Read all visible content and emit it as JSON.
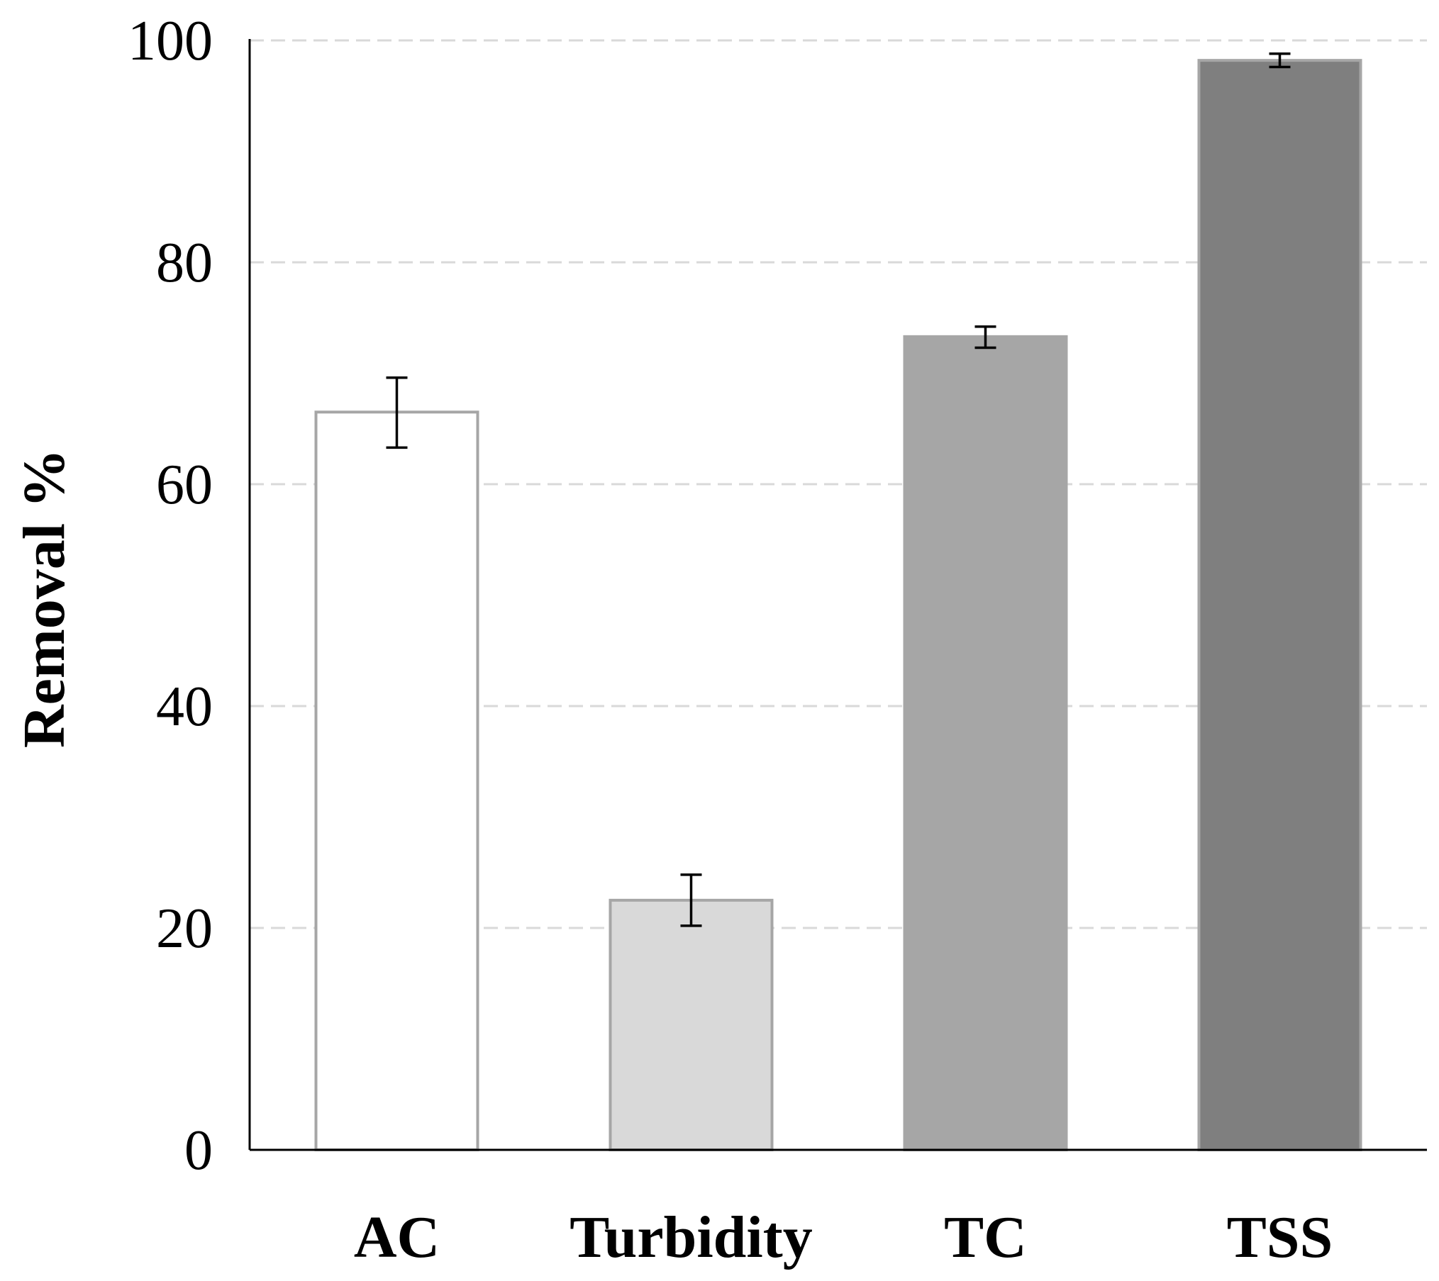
{
  "chart_data": {
    "type": "bar",
    "title": "",
    "xlabel": "",
    "ylabel": "Removal %",
    "ylim": [
      0,
      100
    ],
    "yticks": [
      0,
      20,
      40,
      60,
      80,
      100
    ],
    "grid": true,
    "legend": "none",
    "categories": [
      "AC",
      "Turbidity",
      "TC",
      "TSS"
    ],
    "values": [
      66.5,
      22.5,
      73.3,
      98.2
    ],
    "error_low": [
      63.3,
      20.2,
      72.3,
      97.6
    ],
    "error_high": [
      69.6,
      24.8,
      74.2,
      98.8
    ],
    "fill_colors": [
      "#ffffff",
      "#d9d9d9",
      "#a6a6a6",
      "#7f7f7f"
    ],
    "edge_color": "#a6a6a6",
    "error_color": "#000000"
  }
}
